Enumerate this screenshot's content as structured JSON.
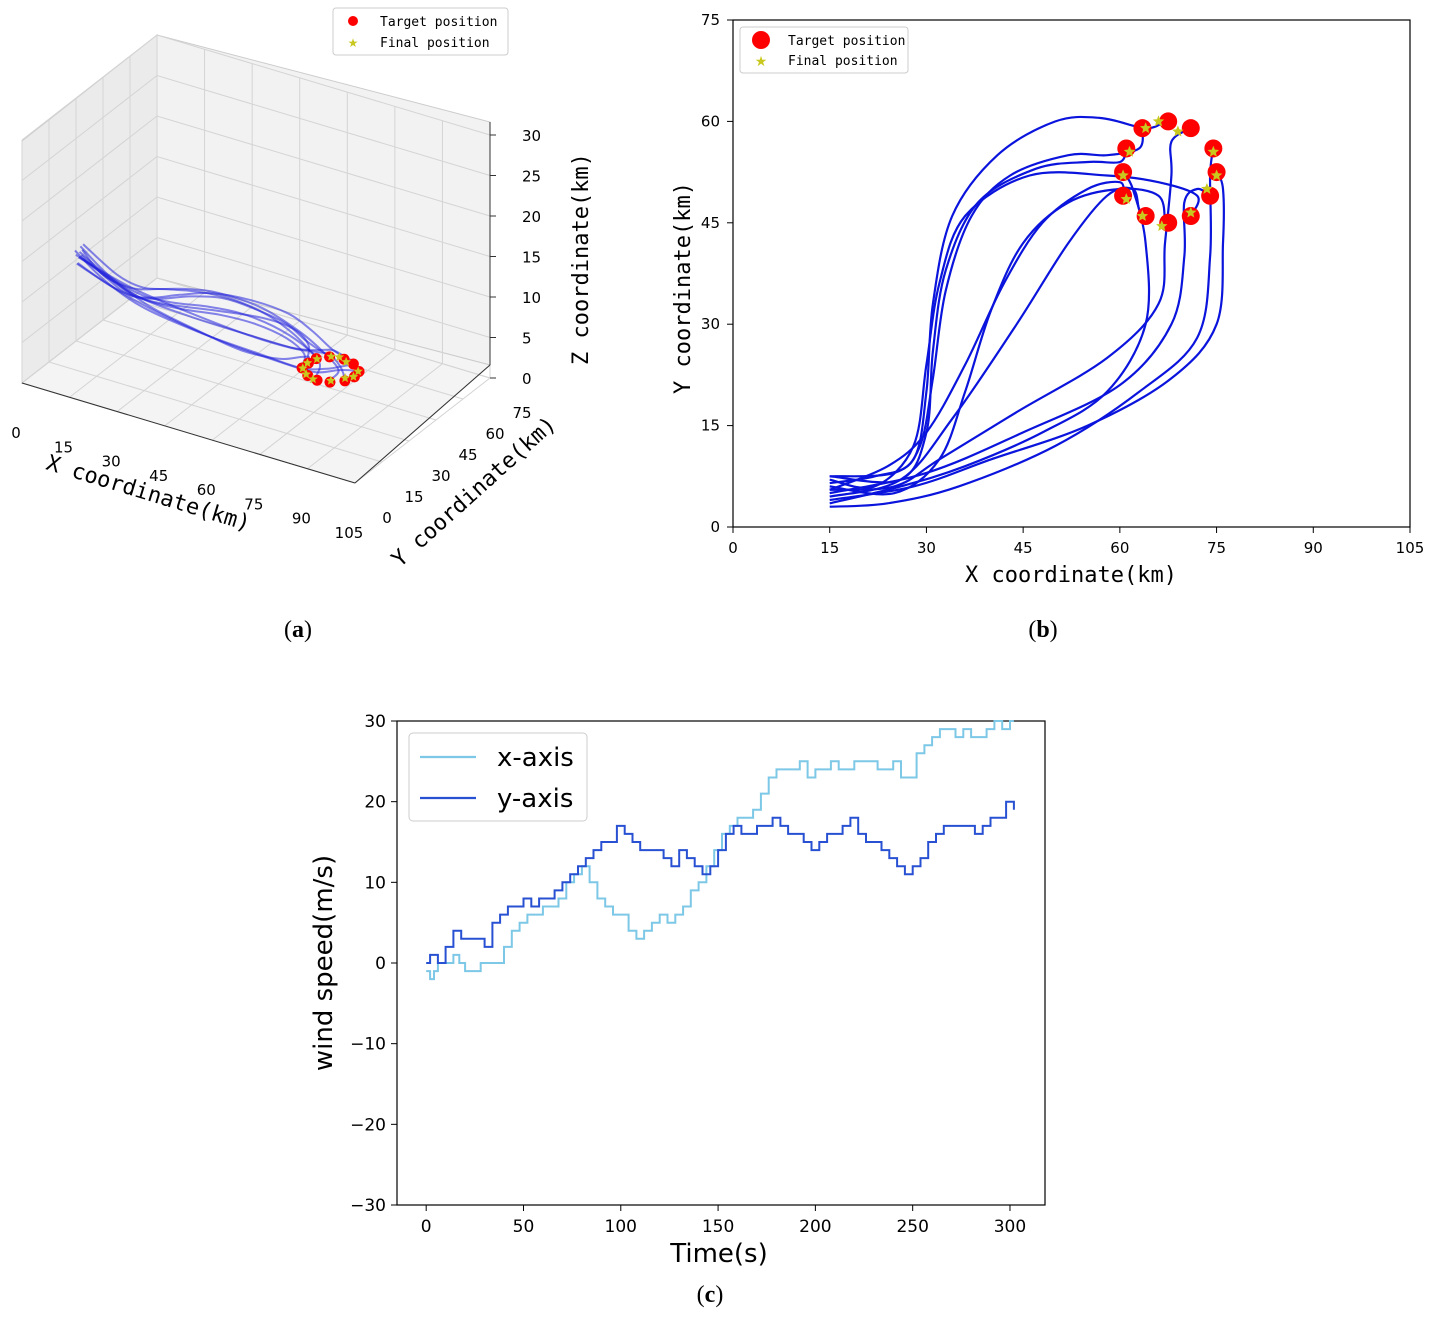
{
  "captions": {
    "a": "a",
    "b": "b",
    "c": "c"
  },
  "chart_data": [
    {
      "id": "a",
      "type": "line",
      "projection": "3d",
      "xlabel": "X coordinate(km)",
      "ylabel": "Y coordinate(km)",
      "zlabel": "Z coordinate(km)",
      "xticks": [
        "0",
        "15",
        "30",
        "45",
        "60",
        "75",
        "90",
        "105"
      ],
      "yticks": [
        "0",
        "15",
        "30",
        "45",
        "60",
        "75"
      ],
      "zticks": [
        "0",
        "5",
        "10",
        "15",
        "20",
        "25",
        "30"
      ],
      "xlim": [
        0,
        105
      ],
      "ylim": [
        0,
        75
      ],
      "zlim": [
        0,
        30
      ],
      "grid": true,
      "legend": {
        "position": "top-right",
        "entries": [
          "Target position",
          "Final position"
        ]
      },
      "series_color": "#2222dd",
      "target_color": "#ff0000",
      "final_color": "#c8c81e"
    },
    {
      "id": "b",
      "type": "line",
      "xlabel": "X coordinate(km)",
      "ylabel": "Y coordinate(km)",
      "xticks": [
        "0",
        "15",
        "30",
        "45",
        "60",
        "75",
        "90",
        "105"
      ],
      "yticks": [
        "0",
        "15",
        "30",
        "45",
        "60",
        "75"
      ],
      "xlim": [
        0,
        105
      ],
      "ylim": [
        0,
        75
      ],
      "grid": false,
      "legend": {
        "position": "top-left",
        "entries": [
          "Target position",
          "Final position"
        ]
      },
      "series_color": "#0a14dc",
      "target_color": "#ff0000",
      "final_color": "#c8c81e",
      "targets": [
        [
          63.5,
          59
        ],
        [
          67.5,
          60
        ],
        [
          71,
          59
        ],
        [
          74.5,
          56
        ],
        [
          75,
          52.5
        ],
        [
          74,
          49
        ],
        [
          71,
          46
        ],
        [
          67.5,
          45
        ],
        [
          64,
          46
        ],
        [
          60.5,
          49
        ],
        [
          60.5,
          52.5
        ],
        [
          61,
          56
        ]
      ],
      "finals": [
        [
          64,
          59
        ],
        [
          66,
          60
        ],
        [
          69,
          58.5
        ],
        [
          74.5,
          55.5
        ],
        [
          75,
          52
        ],
        [
          73.5,
          50
        ],
        [
          71,
          46.5
        ],
        [
          66.5,
          44.5
        ],
        [
          63.5,
          46
        ],
        [
          61,
          48.5
        ],
        [
          60.5,
          52
        ],
        [
          61.5,
          55.5
        ]
      ],
      "paths": [
        [
          [
            15,
            7.5
          ],
          [
            25,
            8
          ],
          [
            29,
            12
          ],
          [
            31,
            22
          ],
          [
            33,
            35
          ],
          [
            37,
            46
          ],
          [
            43,
            52
          ],
          [
            52,
            55
          ],
          [
            58,
            55
          ],
          [
            63,
            56
          ],
          [
            63.5,
            59
          ]
        ],
        [
          [
            15,
            6.5
          ],
          [
            22,
            7.5
          ],
          [
            28,
            10
          ],
          [
            30,
            20
          ],
          [
            31,
            33
          ],
          [
            34,
            46
          ],
          [
            41,
            55
          ],
          [
            50,
            60
          ],
          [
            57,
            60.5
          ],
          [
            64,
            59
          ],
          [
            67,
            60
          ]
        ],
        [
          [
            15,
            5.5
          ],
          [
            25,
            6
          ],
          [
            32,
            10
          ],
          [
            44,
            17
          ],
          [
            58,
            25
          ],
          [
            66,
            33
          ],
          [
            67,
            42
          ],
          [
            68,
            52
          ],
          [
            68,
            57
          ],
          [
            71,
            59
          ]
        ],
        [
          [
            15,
            3
          ],
          [
            24,
            3.5
          ],
          [
            35,
            6
          ],
          [
            50,
            12
          ],
          [
            63,
            20
          ],
          [
            72,
            28
          ],
          [
            74,
            40
          ],
          [
            74,
            52
          ],
          [
            74.5,
            56
          ]
        ],
        [
          [
            15,
            4
          ],
          [
            28,
            6
          ],
          [
            40,
            10
          ],
          [
            55,
            15
          ],
          [
            68,
            22
          ],
          [
            75,
            30
          ],
          [
            76,
            42
          ],
          [
            76,
            50
          ],
          [
            75,
            52.5
          ]
        ],
        [
          [
            15,
            5
          ],
          [
            30,
            8
          ],
          [
            45,
            14
          ],
          [
            60,
            21
          ],
          [
            68,
            30
          ],
          [
            70,
            40
          ],
          [
            70,
            48
          ],
          [
            72,
            50
          ],
          [
            74,
            49
          ]
        ],
        [
          [
            15,
            7
          ],
          [
            22,
            6
          ],
          [
            28,
            12
          ],
          [
            30,
            24
          ],
          [
            32,
            36
          ],
          [
            36,
            46
          ],
          [
            46,
            52
          ],
          [
            58,
            52
          ],
          [
            66,
            51
          ],
          [
            72,
            49
          ],
          [
            71,
            46
          ]
        ],
        [
          [
            15,
            6
          ],
          [
            25,
            5
          ],
          [
            32,
            10
          ],
          [
            36,
            20
          ],
          [
            40,
            32
          ],
          [
            45,
            42
          ],
          [
            52,
            48
          ],
          [
            60,
            50
          ],
          [
            66,
            49
          ],
          [
            67,
            45
          ]
        ],
        [
          [
            15,
            4.5
          ],
          [
            26,
            7
          ],
          [
            34,
            16
          ],
          [
            44,
            30
          ],
          [
            52,
            42
          ],
          [
            58,
            49
          ],
          [
            62,
            50
          ],
          [
            63,
            47
          ],
          [
            64,
            46
          ]
        ],
        [
          [
            15,
            5.5
          ],
          [
            24,
            9
          ],
          [
            30,
            14
          ],
          [
            36,
            24
          ],
          [
            42,
            36
          ],
          [
            48,
            45
          ],
          [
            55,
            50
          ],
          [
            60,
            51
          ],
          [
            60.5,
            49
          ]
        ],
        [
          [
            15,
            3.5
          ],
          [
            26,
            6
          ],
          [
            36,
            9
          ],
          [
            48,
            14
          ],
          [
            58,
            20
          ],
          [
            64,
            30
          ],
          [
            64,
            42
          ],
          [
            62,
            50
          ],
          [
            60.5,
            52.5
          ]
        ],
        [
          [
            15,
            7.5
          ],
          [
            26,
            7
          ],
          [
            30,
            14
          ],
          [
            31,
            26
          ],
          [
            33,
            38
          ],
          [
            38,
            48
          ],
          [
            47,
            53
          ],
          [
            55,
            54
          ],
          [
            60,
            54
          ],
          [
            61,
            56
          ]
        ]
      ]
    },
    {
      "id": "c",
      "type": "line",
      "xlabel": "Time(s)",
      "ylabel": "wind speed(m/s)",
      "xticks": [
        "0",
        "50",
        "100",
        "150",
        "200",
        "250",
        "300"
      ],
      "yticks": [
        "−30",
        "−20",
        "−10",
        "0",
        "10",
        "20",
        "30"
      ],
      "xlim": [
        -15,
        318
      ],
      "ylim": [
        -30,
        30
      ],
      "grid": false,
      "legend": {
        "position": "top-left"
      },
      "series": [
        {
          "name": "x-axis",
          "color": "#7cc8e6",
          "x": [
            0,
            2,
            4,
            6,
            10,
            14,
            17,
            20,
            24,
            28,
            34,
            40,
            44,
            48,
            52,
            56,
            60,
            64,
            68,
            72,
            76,
            80,
            84,
            88,
            92,
            96,
            100,
            104,
            108,
            112,
            116,
            120,
            124,
            128,
            132,
            136,
            140,
            144,
            148,
            152,
            156,
            160,
            164,
            168,
            172,
            176,
            180,
            184,
            188,
            192,
            196,
            200,
            204,
            208,
            212,
            216,
            220,
            224,
            228,
            232,
            236,
            240,
            244,
            248,
            252,
            256,
            260,
            264,
            268,
            272,
            276,
            280,
            284,
            288,
            292,
            296,
            300,
            302
          ],
          "y": [
            -1,
            -2,
            -1,
            0,
            0,
            1,
            0,
            -1,
            -1,
            0,
            0,
            2,
            4,
            5,
            6,
            6,
            7,
            7,
            8,
            10,
            11,
            12,
            10,
            8,
            7,
            6,
            6,
            4,
            3,
            4,
            5,
            6,
            5,
            6,
            7,
            9,
            10,
            12,
            14,
            16,
            17,
            18,
            18,
            19,
            21,
            23,
            24,
            24,
            24,
            25,
            23,
            24,
            24,
            25,
            24,
            24,
            25,
            25,
            25,
            24,
            24,
            25,
            23,
            23,
            26,
            27,
            28,
            29,
            29,
            28,
            29,
            28,
            28,
            29,
            30,
            29,
            30,
            30
          ]
        },
        {
          "name": "y-axis",
          "color": "#2850d2",
          "x": [
            0,
            2,
            4,
            6,
            10,
            14,
            18,
            22,
            26,
            30,
            34,
            38,
            42,
            46,
            50,
            54,
            58,
            62,
            66,
            70,
            74,
            78,
            82,
            86,
            90,
            94,
            98,
            102,
            106,
            110,
            114,
            118,
            122,
            126,
            130,
            134,
            138,
            142,
            146,
            150,
            154,
            158,
            162,
            166,
            170,
            174,
            178,
            182,
            186,
            190,
            194,
            198,
            202,
            206,
            210,
            214,
            218,
            222,
            226,
            230,
            234,
            238,
            242,
            246,
            250,
            254,
            258,
            262,
            266,
            270,
            274,
            278,
            282,
            286,
            290,
            294,
            298,
            302
          ],
          "y": [
            0,
            1,
            1,
            0,
            2,
            4,
            3,
            3,
            3,
            2,
            5,
            6,
            7,
            7,
            8,
            7,
            8,
            8,
            9,
            10,
            11,
            12,
            13,
            14,
            15,
            15,
            17,
            16,
            15,
            14,
            14,
            14,
            13,
            12,
            14,
            13,
            12,
            11,
            12,
            14,
            16,
            17,
            16,
            16,
            17,
            17,
            18,
            17,
            16,
            16,
            15,
            14,
            15,
            16,
            16,
            17,
            18,
            16,
            15,
            15,
            14,
            13,
            12,
            11,
            12,
            13,
            15,
            16,
            17,
            17,
            17,
            17,
            16,
            17,
            18,
            18,
            20,
            19
          ]
        }
      ]
    }
  ]
}
